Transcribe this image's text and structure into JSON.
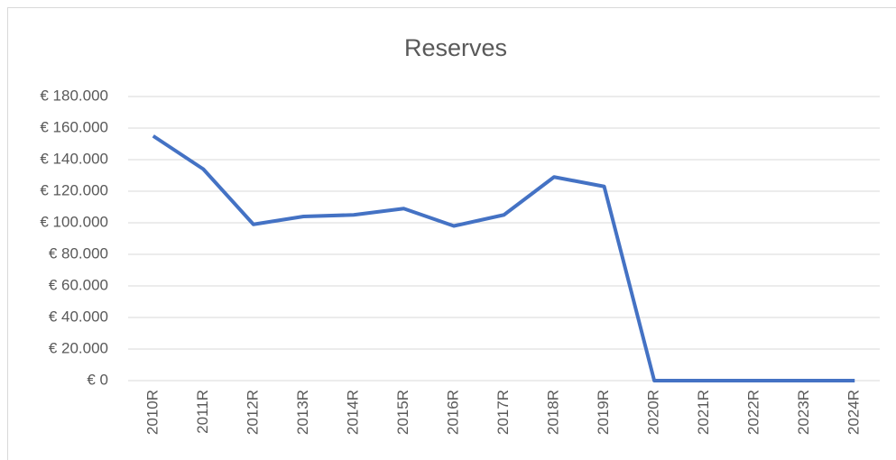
{
  "chart_data": {
    "type": "line",
    "title": "Reserves",
    "categories": [
      "2010R",
      "2011R",
      "2012R",
      "2013R",
      "2014R",
      "2015R",
      "2016R",
      "2017R",
      "2018R",
      "2019R",
      "2020R",
      "2021R",
      "2022R",
      "2023R",
      "2024R"
    ],
    "series": [
      {
        "name": "Reserves",
        "color": "#4472c4",
        "values": [
          155000,
          134000,
          99000,
          104000,
          105000,
          109000,
          98000,
          105000,
          129000,
          123000,
          0,
          0,
          0,
          0,
          0
        ]
      }
    ],
    "ylim": [
      0,
      180000
    ],
    "yticks": [
      {
        "value": 0,
        "label": "€ 0"
      },
      {
        "value": 20000,
        "label": "€ 20.000"
      },
      {
        "value": 40000,
        "label": "€ 40.000"
      },
      {
        "value": 60000,
        "label": "€ 60.000"
      },
      {
        "value": 80000,
        "label": "€ 80.000"
      },
      {
        "value": 100000,
        "label": "€ 100.000"
      },
      {
        "value": 120000,
        "label": "€ 120.000"
      },
      {
        "value": 140000,
        "label": "€ 140.000"
      },
      {
        "value": 160000,
        "label": "€ 160.000"
      },
      {
        "value": 180000,
        "label": "€ 180.000"
      }
    ],
    "grid": true
  }
}
